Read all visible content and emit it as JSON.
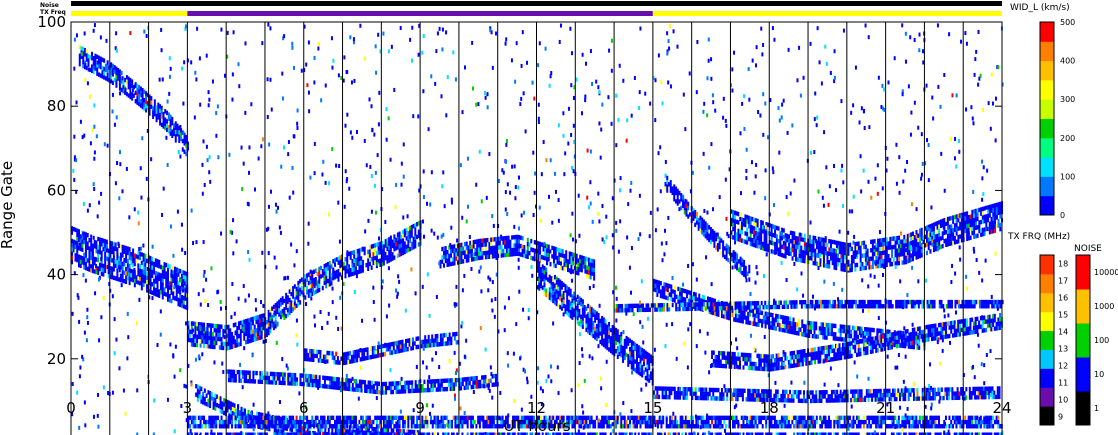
{
  "header": {
    "noise_label": "Noise",
    "txfreq_label": "TX Freq"
  },
  "chart_data": {
    "type": "heatmap",
    "xlabel": "UT hours",
    "ylabel": "Range Gate",
    "xlim": [
      0,
      24
    ],
    "ylim": [
      0,
      100
    ],
    "x_ticks": [
      "0",
      "3",
      "6",
      "9",
      "12",
      "15",
      "18",
      "21",
      "24"
    ],
    "y_ticks": [
      "0",
      "20",
      "40",
      "60",
      "80",
      "100"
    ],
    "hour_grid": true,
    "tx_freq_segments": [
      {
        "start": 0,
        "end": 3,
        "freq_mhz": 14,
        "color": "#ffff00"
      },
      {
        "start": 3,
        "end": 15,
        "freq_mhz": 10,
        "color": "#6a0dad"
      },
      {
        "start": 15,
        "end": 24,
        "freq_mhz": 14,
        "color": "#ffff00"
      }
    ],
    "echo_bands": [
      {
        "t": [
          0,
          0.5,
          1.5,
          2.5,
          3.0
        ],
        "r": [
          47,
          45,
          42,
          38,
          36
        ],
        "w": 8
      },
      {
        "t": [
          0.2,
          1.0,
          1.8,
          2.5,
          3.0
        ],
        "r": [
          92,
          88,
          82,
          76,
          70
        ],
        "w": 4
      },
      {
        "t": [
          3.0,
          4.0,
          5.0,
          6.0,
          7.0,
          8.0,
          9.0
        ],
        "r": [
          26,
          25,
          28,
          37,
          42,
          45,
          50
        ],
        "w": 5
      },
      {
        "t": [
          3.2,
          4.5,
          6.0,
          7.5,
          9.0
        ],
        "r": [
          12,
          6,
          3,
          2,
          1
        ],
        "w": 3
      },
      {
        "t": [
          4.0,
          6.0,
          8.0,
          10.0,
          11.0
        ],
        "r": [
          16,
          15,
          13,
          14,
          15
        ],
        "w": 2
      },
      {
        "t": [
          6.0,
          7.0,
          8.0,
          9.0,
          10.0
        ],
        "r": [
          21,
          20,
          22,
          24,
          25
        ],
        "w": 2
      },
      {
        "t": [
          9.5,
          10.5,
          11.5,
          12.5,
          13.5
        ],
        "r": [
          44,
          46,
          47,
          44,
          41
        ],
        "w": 4
      },
      {
        "t": [
          12.0,
          13.0,
          14.0,
          15.0
        ],
        "r": [
          40,
          32,
          24,
          17
        ],
        "w": 6
      },
      {
        "t": [
          3.0,
          9.0,
          15.0,
          21.0,
          24.0
        ],
        "r": [
          5,
          5,
          5,
          5,
          5
        ],
        "w": 2
      },
      {
        "t": [
          3.0,
          8.0,
          15.0,
          20.0,
          24.0
        ],
        "r": [
          1,
          1,
          1,
          1,
          1
        ],
        "w": 2
      },
      {
        "t": [
          15.0,
          17.0,
          19.0,
          21.0,
          22.0
        ],
        "r": [
          37,
          31,
          27,
          25,
          24
        ],
        "w": 3
      },
      {
        "t": [
          17.0,
          18.5,
          20.0,
          21.5,
          22.5,
          24.0
        ],
        "r": [
          52,
          47,
          44,
          46,
          50,
          54
        ],
        "w": 6
      },
      {
        "t": [
          15.3,
          16.0,
          16.8,
          17.5
        ],
        "r": [
          62,
          54,
          46,
          40
        ],
        "w": 3
      },
      {
        "t": [
          16.5,
          18.0,
          20.0,
          22.0,
          24.0
        ],
        "r": [
          20,
          19,
          22,
          26,
          29
        ],
        "w": 3
      },
      {
        "t": [
          14.0,
          19.0,
          24.0
        ],
        "r": [
          32,
          33,
          33
        ],
        "w": 1
      },
      {
        "t": [
          15.0,
          19.0,
          24.0
        ],
        "r": [
          12,
          11,
          12
        ],
        "w": 2
      }
    ],
    "colorbars": [
      {
        "name": "velocity",
        "title": "WID_L (km/s)",
        "tick_labels": [
          "0",
          "100",
          "200",
          "300",
          "400",
          "500"
        ],
        "colors": [
          "#0000ff",
          "#0078ff",
          "#00e0ff",
          "#00ff80",
          "#00d000",
          "#c8ff00",
          "#ffff00",
          "#ffc000",
          "#ff8000",
          "#ff0000"
        ]
      },
      {
        "name": "tx-freq",
        "title": "TX FRQ (MHz)",
        "tick_labels": [
          "9",
          "10",
          "11",
          "12",
          "13",
          "14",
          "15",
          "16",
          "17",
          "18"
        ],
        "colors": [
          "#000000",
          "#6a0dad",
          "#0000ff",
          "#00c8ff",
          "#00d000",
          "#ffff00",
          "#ffc000",
          "#ff8000",
          "#ff3000"
        ]
      },
      {
        "name": "noise",
        "title": "NOISE",
        "tick_labels": [
          "1",
          "10",
          "100",
          "1000",
          "10000"
        ],
        "colors": [
          "#000000",
          "#0000ff",
          "#00d000",
          "#ffc000",
          "#ff0000"
        ]
      }
    ]
  }
}
